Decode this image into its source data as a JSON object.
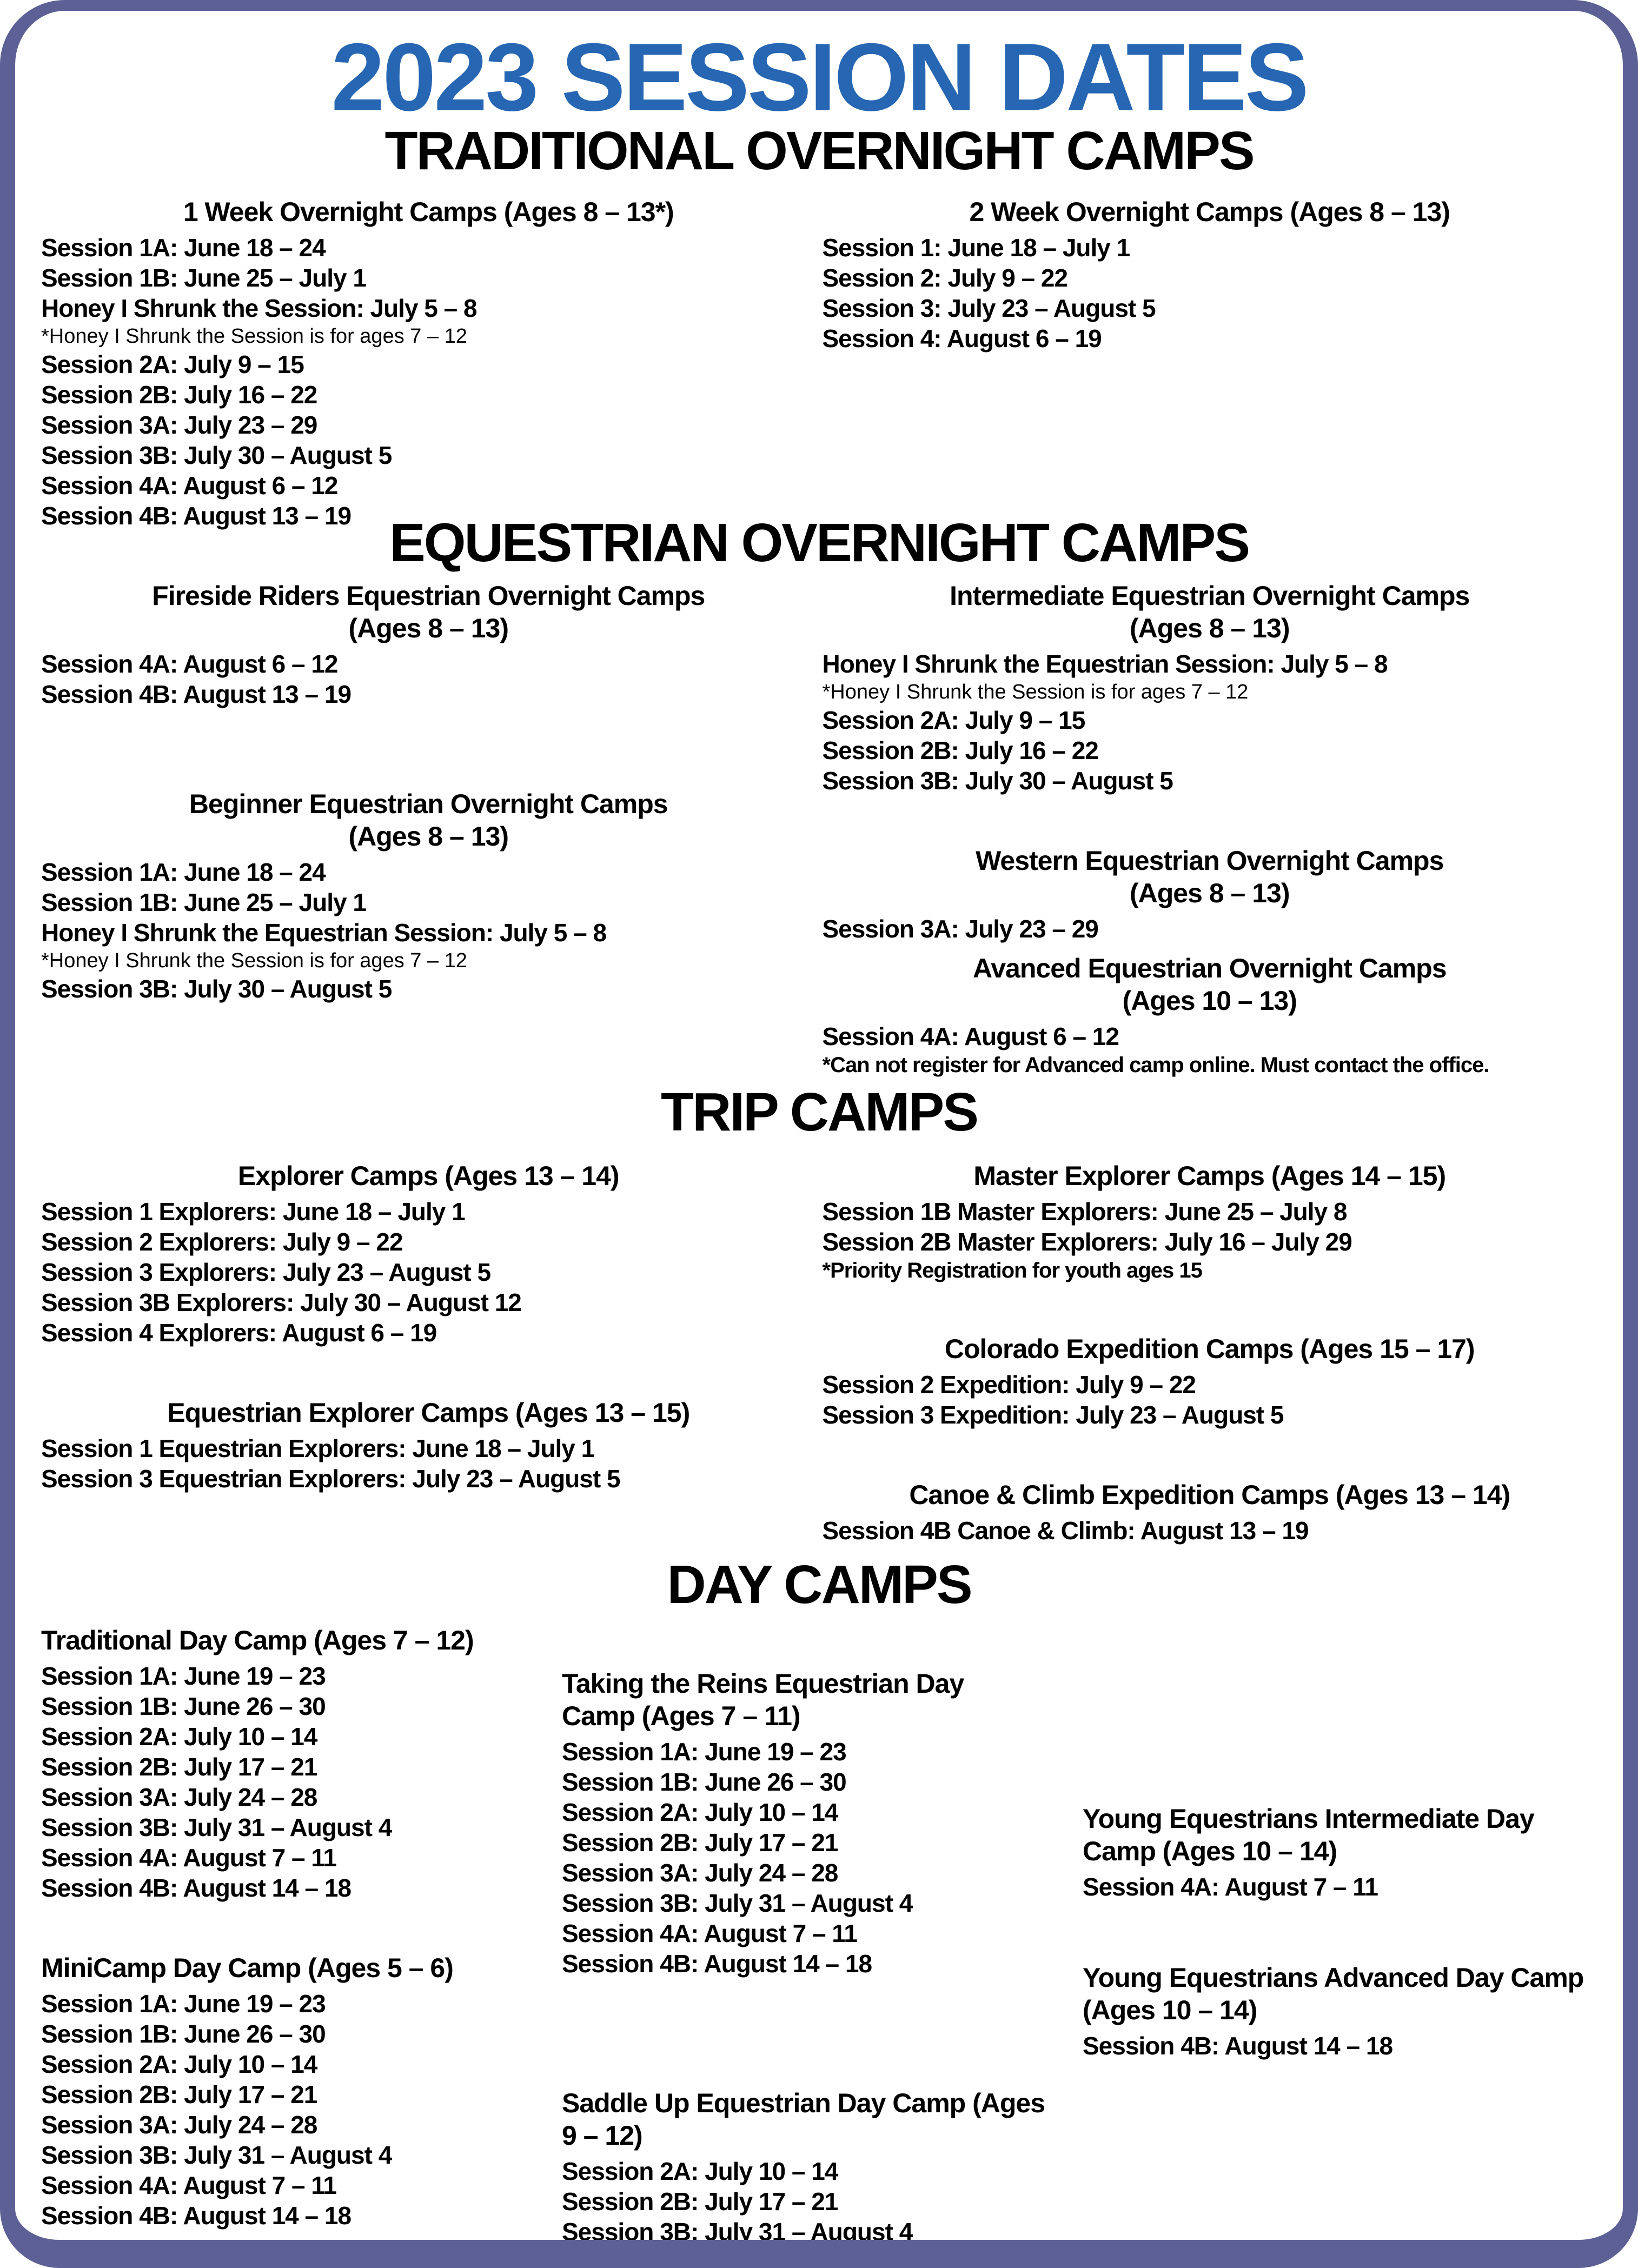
{
  "page": {
    "title": "2023 SESSION DATES",
    "accent_color": "#2666b2",
    "border_color": "#5c6094",
    "text_color": "#000000"
  },
  "sections": [
    {
      "id": "traditional",
      "title": "TRADITIONAL OVERNIGHT CAMPS",
      "columns": [
        [
          {
            "name_lines": [
              "1 Week Overnight Camps (Ages 8 – 13*)"
            ],
            "align": "center",
            "sessions": [
              {
                "text": "Session 1A: June 18 – 24",
                "style": "session"
              },
              {
                "text": "Session 1B: June 25 – July 1",
                "style": "session"
              },
              {
                "text": "Honey I Shrunk the Session: July 5 – 8",
                "style": "session"
              },
              {
                "text": "*Honey I Shrunk the Session is for ages 7 – 12",
                "style": "note"
              },
              {
                "text": "Session 2A: July 9 – 15",
                "style": "session"
              },
              {
                "text": "Session 2B: July 16 – 22",
                "style": "session"
              },
              {
                "text": "Session 3A: July 23 – 29",
                "style": "session"
              },
              {
                "text": "Session 3B: July 30 – August 5",
                "style": "session"
              },
              {
                "text": "Session 4A: August 6 – 12",
                "style": "session"
              },
              {
                "text": "Session 4B: August 13 – 19",
                "style": "session"
              }
            ]
          }
        ],
        [
          {
            "name_lines": [
              "2 Week Overnight Camps (Ages 8 – 13)"
            ],
            "align": "center",
            "sessions": [
              {
                "text": "Session 1: June 18 – July 1",
                "style": "session"
              },
              {
                "text": "Session 2: July 9 – 22",
                "style": "session"
              },
              {
                "text": "Session 3: July 23 – August 5",
                "style": "session"
              },
              {
                "text": "Session 4: August 6 – 19",
                "style": "session"
              }
            ]
          }
        ]
      ]
    },
    {
      "id": "equestrian",
      "title": "EQUESTRIAN OVERNIGHT CAMPS",
      "columns": [
        [
          {
            "name_lines": [
              "Fireside Riders Equestrian Overnight Camps",
              "(Ages 8 – 13)"
            ],
            "align": "center",
            "sessions": [
              {
                "text": "Session 4A: August 6 – 12",
                "style": "session"
              },
              {
                "text": "Session 4B: August 13 – 19",
                "style": "session"
              }
            ]
          },
          {
            "name_lines": [
              "Beginner Equestrian Overnight Camps",
              "(Ages 8 – 13)"
            ],
            "align": "center",
            "sessions": [
              {
                "text": "Session 1A: June 18 – 24",
                "style": "session"
              },
              {
                "text": "Session 1B: June 25 – July 1",
                "style": "session"
              },
              {
                "text": "Honey I Shrunk the Equestrian Session: July 5 – 8",
                "style": "session"
              },
              {
                "text": "*Honey I Shrunk the Session is for ages 7 – 12",
                "style": "note"
              },
              {
                "text": "Session 3B: July 30 – August 5",
                "style": "session"
              }
            ]
          }
        ],
        [
          {
            "name_lines": [
              "Intermediate Equestrian Overnight Camps",
              "(Ages 8 – 13)"
            ],
            "align": "center",
            "sessions": [
              {
                "text": "Honey I Shrunk the Equestrian Session: July 5 – 8",
                "style": "session"
              },
              {
                "text": "*Honey I Shrunk the Session is for ages 7 – 12",
                "style": "note"
              },
              {
                "text": "Session 2A: July 9 – 15",
                "style": "session"
              },
              {
                "text": "Session 2B: July 16 – 22",
                "style": "session"
              },
              {
                "text": "Session 3B: July 30 – August 5",
                "style": "session"
              }
            ]
          },
          {
            "name_lines": [
              "Western Equestrian Overnight Camps",
              "(Ages 8 – 13)"
            ],
            "align": "center",
            "sessions": [
              {
                "text": "Session 3A: July 23 – 29",
                "style": "session"
              }
            ]
          },
          {
            "name_lines": [
              "Avanced Equestrian Overnight Camps",
              "(Ages 10 – 13)"
            ],
            "align": "center",
            "sessions": [
              {
                "text": "Session 4A: August 6 – 12",
                "style": "session"
              },
              {
                "text": "*Can not register for Advanced camp online. Must contact the office.",
                "style": "note-bold"
              }
            ]
          }
        ]
      ]
    },
    {
      "id": "trip",
      "title": "TRIP CAMPS",
      "columns": [
        [
          {
            "name_lines": [
              "Explorer Camps (Ages 13 – 14)"
            ],
            "align": "center",
            "sessions": [
              {
                "text": "Session 1 Explorers: June 18 – July 1",
                "style": "session"
              },
              {
                "text": "Session 2 Explorers: July 9 – 22",
                "style": "session"
              },
              {
                "text": "Session 3 Explorers: July 23 – August 5",
                "style": "session"
              },
              {
                "text": "Session 3B Explorers: July 30 – August 12",
                "style": "session"
              },
              {
                "text": "Session 4 Explorers: August 6 – 19",
                "style": "session"
              }
            ]
          },
          {
            "name_lines": [
              "Equestrian Explorer Camps (Ages 13 – 15)"
            ],
            "align": "center",
            "sessions": [
              {
                "text": "Session 1 Equestrian Explorers: June 18 – July 1",
                "style": "session"
              },
              {
                "text": "Session 3 Equestrian Explorers: July 23 – August 5",
                "style": "session"
              }
            ]
          }
        ],
        [
          {
            "name_lines": [
              "Master Explorer Camps (Ages 14 – 15)"
            ],
            "align": "center",
            "sessions": [
              {
                "text": "Session 1B Master Explorers: June 25 – July 8",
                "style": "session"
              },
              {
                "text": "Session 2B Master Explorers: July 16 – July 29",
                "style": "session"
              },
              {
                "text": "*Priority Registration for youth ages 15",
                "style": "note-bold"
              }
            ]
          },
          {
            "name_lines": [
              "Colorado Expedition Camps (Ages 15 – 17)"
            ],
            "align": "center",
            "sessions": [
              {
                "text": "Session 2 Expedition: July 9 – 22",
                "style": "session"
              },
              {
                "text": "Session 3 Expedition: July 23 – August 5",
                "style": "session"
              }
            ]
          },
          {
            "name_lines": [
              "Canoe & Climb Expedition Camps (Ages 13 – 14)"
            ],
            "align": "center",
            "sessions": [
              {
                "text": "Session 4B Canoe & Climb: August 13 – 19",
                "style": "session"
              }
            ]
          }
        ]
      ]
    },
    {
      "id": "day",
      "title": "DAY CAMPS",
      "columns": [
        [
          {
            "name_lines": [
              "Traditional Day Camp (Ages 7 – 12)"
            ],
            "align": "left",
            "sessions": [
              {
                "text": "Session 1A: June 19 – 23",
                "style": "session"
              },
              {
                "text": "Session 1B: June 26 – 30",
                "style": "session"
              },
              {
                "text": "Session 2A: July 10 – 14",
                "style": "session"
              },
              {
                "text": "Session 2B: July 17 – 21",
                "style": "session"
              },
              {
                "text": "Session 3A: July 24 – 28",
                "style": "session"
              },
              {
                "text": "Session 3B: July 31 – August 4",
                "style": "session"
              },
              {
                "text": "Session 4A: August 7 – 11",
                "style": "session"
              },
              {
                "text": "Session 4B: August 14 – 18",
                "style": "session"
              }
            ]
          },
          {
            "name_lines": [
              "MiniCamp Day Camp (Ages 5 – 6)"
            ],
            "align": "left",
            "sessions": [
              {
                "text": "Session 1A: June 19 – 23",
                "style": "session"
              },
              {
                "text": "Session 1B: June 26 – 30",
                "style": "session"
              },
              {
                "text": "Session 2A: July 10 – 14",
                "style": "session"
              },
              {
                "text": "Session 2B: July 17 – 21",
                "style": "session"
              },
              {
                "text": "Session 3A: July 24 – 28",
                "style": "session"
              },
              {
                "text": "Session 3B: July 31 – August 4",
                "style": "session"
              },
              {
                "text": "Session 4A: August 7 – 11",
                "style": "session"
              },
              {
                "text": "Session 4B: August 14 – 18",
                "style": "session"
              }
            ]
          }
        ],
        [
          {
            "name_lines": [
              "Taking the Reins Equestrian Day",
              "Camp (Ages 7 – 11)"
            ],
            "align": "left",
            "sessions": [
              {
                "text": "Session 1A: June 19 – 23",
                "style": "session"
              },
              {
                "text": "Session 1B: June 26 – 30",
                "style": "session"
              },
              {
                "text": "Session 2A: July 10 – 14",
                "style": "session"
              },
              {
                "text": "Session 2B: July 17 – 21",
                "style": "session"
              },
              {
                "text": "Session 3A: July 24 – 28",
                "style": "session"
              },
              {
                "text": "Session 3B: July 31 – August 4",
                "style": "session"
              },
              {
                "text": "Session 4A: August 7 – 11",
                "style": "session"
              },
              {
                "text": "Session 4B: August 14 – 18",
                "style": "session"
              }
            ]
          },
          {
            "name_lines": [
              "Saddle Up Equestrian Day Camp (Ages",
              "9 – 12)"
            ],
            "align": "left",
            "sessions": [
              {
                "text": "Session 2A: July 10 – 14",
                "style": "session"
              },
              {
                "text": "Session 2B: July 17 – 21",
                "style": "session"
              },
              {
                "text": "Session 3B: July 31 – August 4",
                "style": "session"
              }
            ]
          }
        ],
        [
          {
            "name_lines": [
              "Young Equestrians Intermediate Day",
              "Camp (Ages 10 – 14)"
            ],
            "align": "left",
            "sessions": [
              {
                "text": "Session 4A: August 7 – 11",
                "style": "session"
              }
            ]
          },
          {
            "name_lines": [
              "Young Equestrians Advanced Day Camp",
              "(Ages 10 – 14)"
            ],
            "align": "left",
            "sessions": [
              {
                "text": "Session 4B: August 14 – 18",
                "style": "session"
              }
            ]
          }
        ]
      ]
    }
  ]
}
